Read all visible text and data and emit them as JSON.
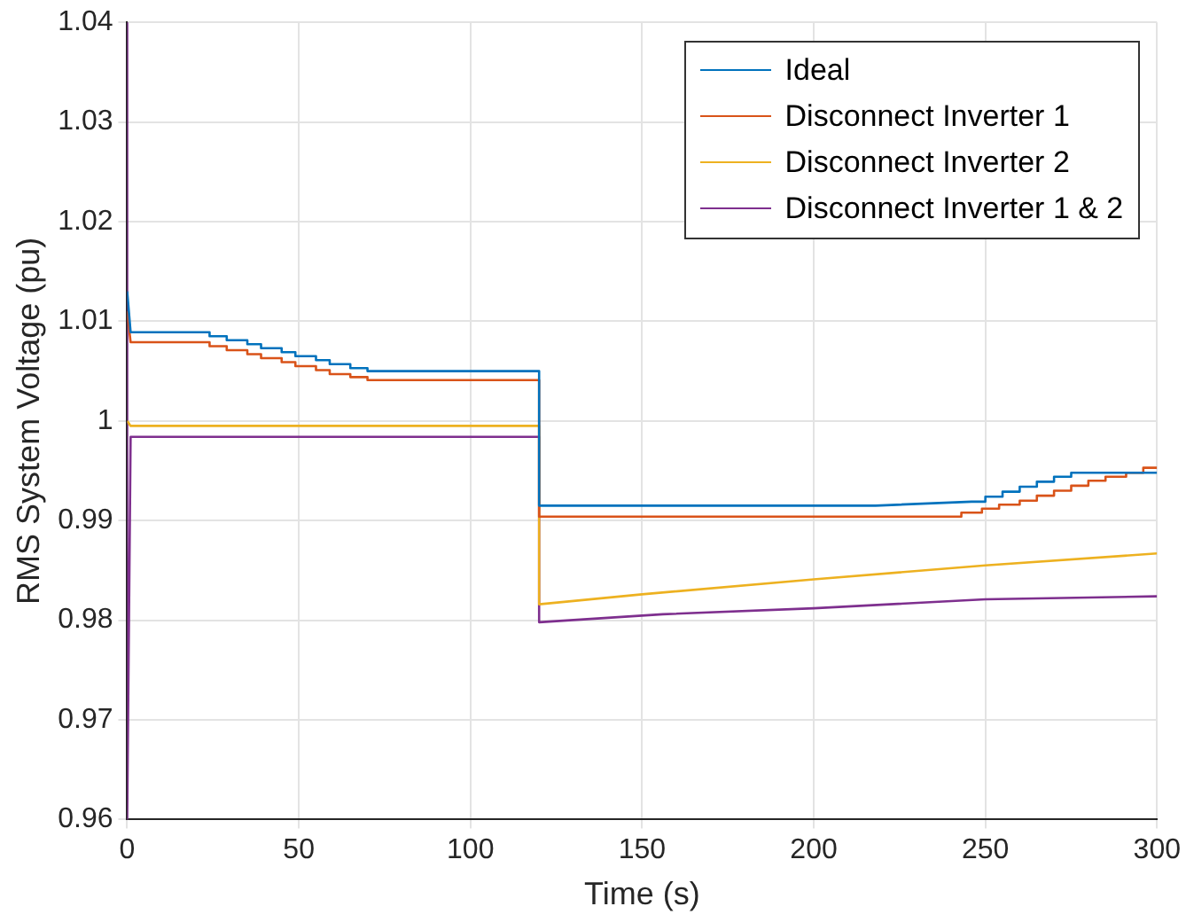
{
  "chart_data": {
    "type": "line",
    "xlabel": "Time (s)",
    "ylabel": "RMS System Voltage (pu)",
    "xlim": [
      0,
      300
    ],
    "xticks": [
      0,
      50,
      100,
      150,
      200,
      250,
      300
    ],
    "ylim": [
      0.96,
      1.04
    ],
    "yticks": [
      0.96,
      0.97,
      0.98,
      0.99,
      1,
      1.01,
      1.02,
      1.03,
      1.04
    ],
    "grid": true,
    "legend": "top right",
    "marker": "none",
    "line_style": "solid",
    "series": [
      {
        "name": "Ideal",
        "color": "#0072bd",
        "x": [
          0,
          1,
          24,
          24,
          29,
          29,
          35,
          35,
          39,
          39,
          45,
          45,
          49,
          49,
          55,
          55,
          59,
          59,
          65,
          65,
          70,
          70,
          120,
          120,
          218,
          246,
          250,
          250,
          255,
          255,
          260,
          260,
          265,
          265,
          270,
          270,
          275,
          275,
          300
        ],
        "values": [
          1.013,
          1.0089,
          1.0089,
          1.0085,
          1.0085,
          1.0081,
          1.0081,
          1.0077,
          1.0077,
          1.0073,
          1.0073,
          1.0069,
          1.0069,
          1.0065,
          1.0065,
          1.0061,
          1.0061,
          1.0057,
          1.0057,
          1.0053,
          1.0053,
          1.005,
          1.005,
          0.9915,
          0.9915,
          0.9919,
          0.9919,
          0.9924,
          0.9924,
          0.9929,
          0.9929,
          0.9934,
          0.9934,
          0.9939,
          0.9939,
          0.9944,
          0.9944,
          0.9948,
          0.9948
        ]
      },
      {
        "name": "Disconnect Inverter 1",
        "color": "#d95319",
        "x": [
          0,
          1,
          24,
          24,
          29,
          29,
          35,
          35,
          39,
          39,
          45,
          45,
          49,
          49,
          55,
          55,
          59,
          59,
          65,
          65,
          70,
          70,
          120,
          120,
          243,
          243,
          249,
          249,
          254,
          254,
          260,
          260,
          265,
          265,
          270,
          270,
          275,
          275,
          280,
          280,
          285,
          285,
          291,
          291,
          296,
          296,
          300
        ],
        "values": [
          1.011,
          1.0079,
          1.0079,
          1.0075,
          1.0075,
          1.0071,
          1.0071,
          1.0067,
          1.0067,
          1.0063,
          1.0063,
          1.0059,
          1.0059,
          1.0055,
          1.0055,
          1.0051,
          1.0051,
          1.0047,
          1.0047,
          1.0044,
          1.0044,
          1.0041,
          1.0041,
          0.9904,
          0.9904,
          0.9908,
          0.9908,
          0.9912,
          0.9912,
          0.9916,
          0.9916,
          0.992,
          0.992,
          0.9925,
          0.9925,
          0.993,
          0.993,
          0.9935,
          0.9935,
          0.994,
          0.994,
          0.9944,
          0.9944,
          0.9948,
          0.9948,
          0.9953,
          0.9953
        ]
      },
      {
        "name": "Disconnect Inverter 2",
        "color": "#edb120",
        "x": [
          0,
          1,
          120,
          120,
          150,
          200,
          250,
          300
        ],
        "values": [
          1.0,
          0.9995,
          0.9995,
          0.9816,
          0.9826,
          0.9841,
          0.9855,
          0.9867
        ]
      },
      {
        "name": "Disconnect Inverter 1 & 2",
        "color": "#7e2f8e",
        "x": [
          0,
          0,
          1,
          120,
          120,
          156,
          200,
          250,
          300
        ],
        "values": [
          1.04,
          0.96,
          0.9984,
          0.9984,
          0.9798,
          0.9806,
          0.9812,
          0.9821,
          0.9824
        ]
      }
    ]
  }
}
